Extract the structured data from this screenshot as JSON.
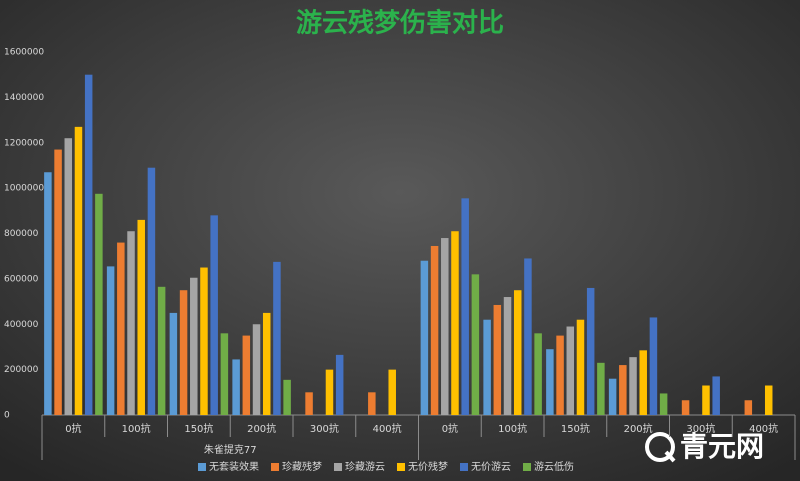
{
  "chart_data": {
    "type": "bar",
    "title": "游云残梦伤害对比",
    "categories": [
      "0抗",
      "100抗",
      "150抗",
      "200抗",
      "300抗",
      "400抗",
      "0抗",
      "100抗",
      "150抗",
      "200抗",
      "300抗",
      "400抗"
    ],
    "groups": [
      "朱雀提克77",
      null
    ],
    "series": [
      {
        "name": "无套装效果",
        "color": "#5b9bd5",
        "values": [
          1070000,
          655000,
          450000,
          245000,
          null,
          null,
          680000,
          420000,
          290000,
          160000,
          null,
          null
        ]
      },
      {
        "name": "珍藏残梦",
        "color": "#ed7d31",
        "values": [
          1170000,
          760000,
          550000,
          350000,
          100000,
          100000,
          745000,
          485000,
          350000,
          220000,
          65000,
          65000
        ]
      },
      {
        "name": "珍藏游云",
        "color": "#a5a5a5",
        "values": [
          1220000,
          810000,
          605000,
          400000,
          null,
          null,
          780000,
          520000,
          390000,
          255000,
          null,
          null
        ]
      },
      {
        "name": "无价残梦",
        "color": "#ffc000",
        "values": [
          1270000,
          860000,
          650000,
          450000,
          200000,
          200000,
          810000,
          550000,
          420000,
          285000,
          130000,
          130000
        ]
      },
      {
        "name": "无价游云",
        "color": "#4472c4",
        "values": [
          1500000,
          1090000,
          880000,
          675000,
          265000,
          null,
          955000,
          690000,
          560000,
          430000,
          170000,
          null
        ]
      },
      {
        "name": "游云低伤",
        "color": "#70ad47",
        "values": [
          975000,
          565000,
          360000,
          155000,
          null,
          null,
          620000,
          360000,
          230000,
          95000,
          null,
          null
        ]
      }
    ],
    "ylim": [
      0,
      1600000
    ],
    "yticks": [
      0,
      200000,
      400000,
      600000,
      800000,
      1000000,
      1200000,
      1400000,
      1600000
    ],
    "grid": false,
    "legend": "bottom"
  },
  "watermark": "青元网"
}
